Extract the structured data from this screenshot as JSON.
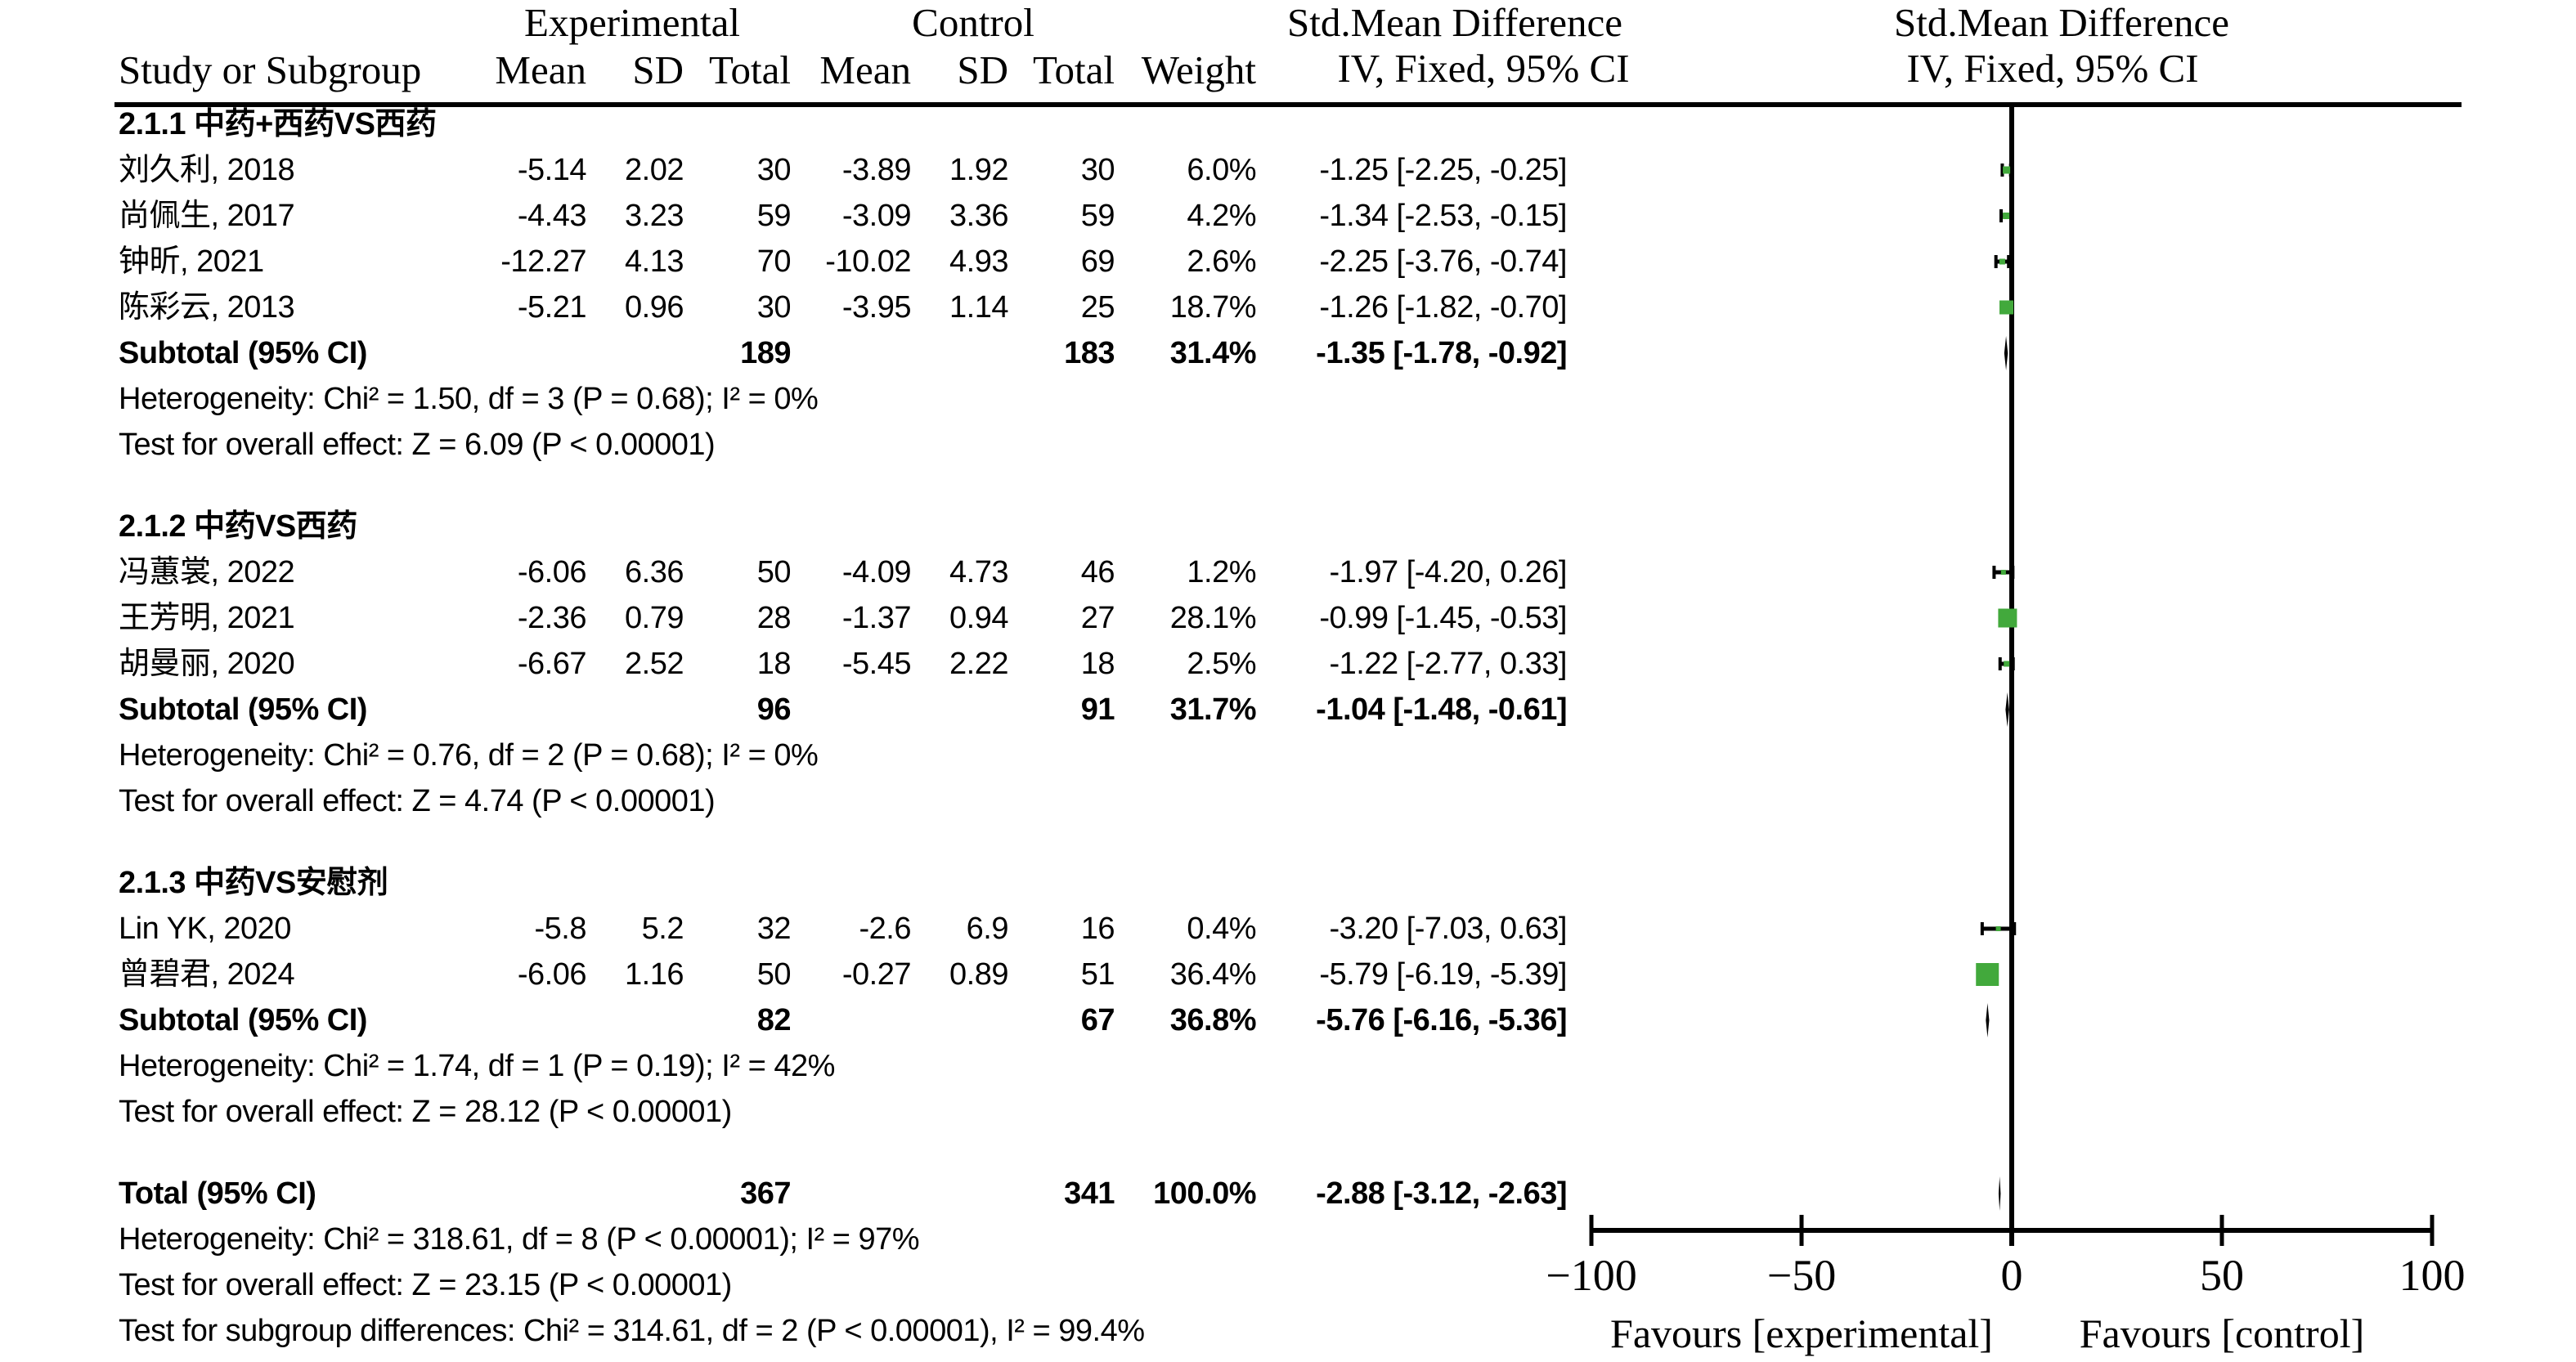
{
  "header": {
    "group_experimental": "Experimental",
    "group_control": "Control",
    "effect_title": "Std.Mean Difference",
    "effect_method": "IV, Fixed, 95% CI",
    "plot_effect_title": "Std.Mean Difference",
    "plot_effect_method": "IV, Fixed, 95% CI",
    "study_col": "Study or Subgroup",
    "cols": [
      "Mean",
      "SD",
      "Total",
      "Mean",
      "SD",
      "Total",
      "Weight"
    ]
  },
  "colors": {
    "marker_green": "#42a93c",
    "ink": "#000000"
  },
  "chart_data": {
    "type": "forest",
    "effect_measure": "Std.Mean Difference (IV, Fixed, 95% CI)",
    "x_axis": {
      "min": -100,
      "max": 100,
      "ticks": [
        {
          "v": -100,
          "label": "−100"
        },
        {
          "v": -50,
          "label": "−50"
        },
        {
          "v": 0,
          "label": "0"
        },
        {
          "v": 50,
          "label": "50"
        },
        {
          "v": 100,
          "label": "100"
        }
      ],
      "favours_left": "Favours [experimental]",
      "favours_right": "Favours [control]"
    },
    "sections": [
      {
        "title": "2.1.1 中药+西药VS西药",
        "studies": [
          {
            "name": "刘久利, 2018",
            "mean_e": "-5.14",
            "sd_e": "2.02",
            "total_e": "30",
            "mean_c": "-3.89",
            "sd_c": "1.92",
            "total_c": "30",
            "weight": "6.0%",
            "weight_pct": 6.0,
            "ci_text": "-1.25 [-2.25, -0.25]",
            "smd": -1.25,
            "lo": -2.25,
            "hi": -0.25
          },
          {
            "name": "尚佩生, 2017",
            "mean_e": "-4.43",
            "sd_e": "3.23",
            "total_e": "59",
            "mean_c": "-3.09",
            "sd_c": "3.36",
            "total_c": "59",
            "weight": "4.2%",
            "weight_pct": 4.2,
            "ci_text": "-1.34 [-2.53, -0.15]",
            "smd": -1.34,
            "lo": -2.53,
            "hi": -0.15
          },
          {
            "name": "钟昕, 2021",
            "mean_e": "-12.27",
            "sd_e": "4.13",
            "total_e": "70",
            "mean_c": "-10.02",
            "sd_c": "4.93",
            "total_c": "69",
            "weight": "2.6%",
            "weight_pct": 2.6,
            "ci_text": "-2.25 [-3.76, -0.74]",
            "smd": -2.25,
            "lo": -3.76,
            "hi": -0.74
          },
          {
            "name": "陈彩云, 2013",
            "mean_e": "-5.21",
            "sd_e": "0.96",
            "total_e": "30",
            "mean_c": "-3.95",
            "sd_c": "1.14",
            "total_c": "25",
            "weight": "18.7%",
            "weight_pct": 18.7,
            "ci_text": "-1.26 [-1.82, -0.70]",
            "smd": -1.26,
            "lo": -1.82,
            "hi": -0.7
          }
        ],
        "subtotal": {
          "label": "Subtotal (95% CI)",
          "total_e": "189",
          "total_c": "183",
          "weight": "31.4%",
          "ci_text": "-1.35 [-1.78, -0.92]",
          "smd": -1.35,
          "lo": -1.78,
          "hi": -0.92
        },
        "heterogeneity": "Heterogeneity: Chi² = 1.50, df = 3 (P = 0.68); I² = 0%",
        "overall_effect": "Test for overall effect: Z = 6.09 (P < 0.00001)"
      },
      {
        "title": "2.1.2 中药VS西药",
        "studies": [
          {
            "name": "冯蕙裳, 2022",
            "mean_e": "-6.06",
            "sd_e": "6.36",
            "total_e": "50",
            "mean_c": "-4.09",
            "sd_c": "4.73",
            "total_c": "46",
            "weight": "1.2%",
            "weight_pct": 1.2,
            "ci_text": "-1.97 [-4.20, 0.26]",
            "smd": -1.97,
            "lo": -4.2,
            "hi": 0.26
          },
          {
            "name": "王芳明, 2021",
            "mean_e": "-2.36",
            "sd_e": "0.79",
            "total_e": "28",
            "mean_c": "-1.37",
            "sd_c": "0.94",
            "total_c": "27",
            "weight": "28.1%",
            "weight_pct": 28.1,
            "ci_text": "-0.99 [-1.45, -0.53]",
            "smd": -0.99,
            "lo": -1.45,
            "hi": -0.53
          },
          {
            "name": "胡曼丽, 2020",
            "mean_e": "-6.67",
            "sd_e": "2.52",
            "total_e": "18",
            "mean_c": "-5.45",
            "sd_c": "2.22",
            "total_c": "18",
            "weight": "2.5%",
            "weight_pct": 2.5,
            "ci_text": "-1.22 [-2.77, 0.33]",
            "smd": -1.22,
            "lo": -2.77,
            "hi": 0.33
          }
        ],
        "subtotal": {
          "label": "Subtotal (95% CI)",
          "total_e": "96",
          "total_c": "91",
          "weight": "31.7%",
          "ci_text": "-1.04 [-1.48, -0.61]",
          "smd": -1.04,
          "lo": -1.48,
          "hi": -0.61
        },
        "heterogeneity": "Heterogeneity: Chi² = 0.76, df = 2 (P = 0.68); I² = 0%",
        "overall_effect": "Test for overall effect: Z = 4.74 (P < 0.00001)"
      },
      {
        "title": "2.1.3 中药VS安慰剂",
        "studies": [
          {
            "name": "Lin YK, 2020",
            "mean_e": "-5.8",
            "sd_e": "5.2",
            "total_e": "32",
            "mean_c": "-2.6",
            "sd_c": "6.9",
            "total_c": "16",
            "weight": "0.4%",
            "weight_pct": 0.4,
            "ci_text": "-3.20 [-7.03, 0.63]",
            "smd": -3.2,
            "lo": -7.03,
            "hi": 0.63
          },
          {
            "name": "曾碧君, 2024",
            "mean_e": "-6.06",
            "sd_e": "1.16",
            "total_e": "50",
            "mean_c": "-0.27",
            "sd_c": "0.89",
            "total_c": "51",
            "weight": "36.4%",
            "weight_pct": 36.4,
            "ci_text": "-5.79 [-6.19, -5.39]",
            "smd": -5.79,
            "lo": -6.19,
            "hi": -5.39
          }
        ],
        "subtotal": {
          "label": "Subtotal (95% CI)",
          "total_e": "82",
          "total_c": "67",
          "weight": "36.8%",
          "ci_text": "-5.76 [-6.16, -5.36]",
          "smd": -5.76,
          "lo": -6.16,
          "hi": -5.36
        },
        "heterogeneity": "Heterogeneity: Chi² = 1.74, df = 1 (P = 0.19); I² = 42%",
        "overall_effect": "Test for overall effect: Z = 28.12 (P < 0.00001)"
      }
    ],
    "total": {
      "label": "Total (95% CI)",
      "total_e": "367",
      "total_c": "341",
      "weight": "100.0%",
      "ci_text": "-2.88 [-3.12, -2.63]",
      "smd": -2.88,
      "lo": -3.12,
      "hi": -2.63
    },
    "total_heterogeneity": "Heterogeneity: Chi² = 318.61, df = 8 (P < 0.00001); I² = 97%",
    "total_overall_effect": "Test for overall effect: Z = 23.15 (P < 0.00001)",
    "subgroup_differences": "Test for subgroup differences: Chi² = 314.61, df = 2 (P < 0.00001), I² = 99.4%"
  }
}
